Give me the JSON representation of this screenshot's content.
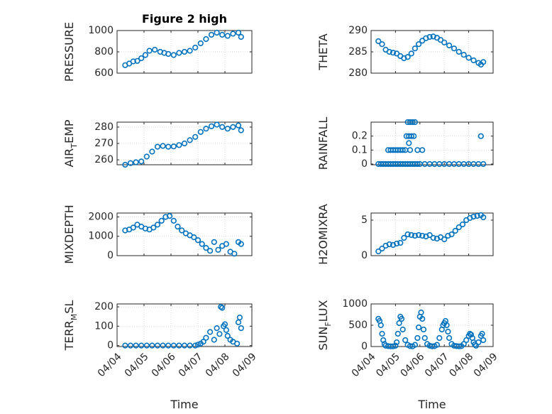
{
  "colors": {
    "marker": "#0072BD",
    "axis": "#262626",
    "grid": "#d9d9d9",
    "background": "#ffffff"
  },
  "chart_data": [
    {
      "id": "pressure",
      "type": "scatter",
      "title": "Figure 2 high",
      "ylabel": "PRESSURE",
      "xlabel": "",
      "xlim": [
        0,
        5
      ],
      "ylim": [
        600,
        1000
      ],
      "yticks": [
        600,
        800,
        1000
      ],
      "yticklabels": [
        "600",
        "800",
        "1000"
      ],
      "xticks": [
        0,
        1,
        2,
        3,
        4,
        5
      ],
      "show_xticklabels": false,
      "grid": true,
      "x": [
        0.3,
        0.45,
        0.6,
        0.75,
        0.9,
        1.05,
        1.2,
        1.4,
        1.6,
        1.75,
        1.9,
        2.1,
        2.3,
        2.5,
        2.7,
        2.9,
        3.1,
        3.3,
        3.5,
        3.7,
        3.9,
        4.1,
        4.3,
        4.5,
        4.6
      ],
      "y": [
        675,
        690,
        710,
        715,
        740,
        770,
        810,
        820,
        800,
        790,
        780,
        770,
        790,
        800,
        810,
        840,
        880,
        920,
        960,
        980,
        960,
        950,
        970,
        980,
        940
      ]
    },
    {
      "id": "theta",
      "type": "scatter",
      "ylabel": "THETA",
      "xlabel": "",
      "xlim": [
        0,
        5
      ],
      "ylim": [
        280,
        290
      ],
      "yticks": [
        280,
        285,
        290
      ],
      "yticklabels": [
        "280",
        "285",
        "290"
      ],
      "xticks": [
        0,
        1,
        2,
        3,
        4,
        5
      ],
      "show_xticklabels": false,
      "grid": true,
      "x": [
        0.3,
        0.45,
        0.6,
        0.75,
        0.9,
        1.05,
        1.2,
        1.35,
        1.5,
        1.65,
        1.8,
        1.95,
        2.1,
        2.25,
        2.4,
        2.55,
        2.7,
        2.85,
        3.0,
        3.2,
        3.4,
        3.6,
        3.8,
        4.0,
        4.2,
        4.4,
        4.5,
        4.6
      ],
      "y": [
        287.5,
        286.8,
        285.5,
        285.0,
        284.8,
        284.6,
        284.0,
        283.5,
        283.8,
        284.6,
        285.8,
        286.8,
        287.6,
        288.2,
        288.5,
        288.6,
        288.3,
        287.8,
        287.2,
        286.5,
        285.8,
        285.0,
        284.3,
        283.6,
        283.0,
        282.4,
        282.0,
        282.6
      ]
    },
    {
      "id": "air_temp",
      "type": "scatter",
      "ylabel": "AIR_TEMP",
      "ylabel_parts": [
        "AIR",
        "T",
        "EMP"
      ],
      "xlabel": "",
      "xlim": [
        0,
        5
      ],
      "ylim": [
        257,
        283
      ],
      "yticks": [
        260,
        270,
        280
      ],
      "yticklabels": [
        "260",
        "270",
        "280"
      ],
      "xticks": [
        0,
        1,
        2,
        3,
        4,
        5
      ],
      "show_xticklabels": false,
      "grid": true,
      "x": [
        0.3,
        0.5,
        0.7,
        0.9,
        1.1,
        1.3,
        1.5,
        1.7,
        1.9,
        2.1,
        2.3,
        2.5,
        2.7,
        2.9,
        3.1,
        3.3,
        3.5,
        3.7,
        3.9,
        4.1,
        4.3,
        4.5,
        4.6
      ],
      "y": [
        257,
        258,
        258.5,
        259,
        262,
        265,
        268,
        268.5,
        268,
        268.2,
        269,
        270,
        272,
        274,
        277,
        279,
        280.5,
        281.5,
        280,
        279,
        280,
        281,
        278
      ]
    },
    {
      "id": "rainfall",
      "type": "scatter",
      "ylabel": "RAINFALL",
      "xlabel": "",
      "xlim": [
        0,
        5
      ],
      "ylim": [
        -0.005,
        0.3
      ],
      "yticks": [
        0,
        0.1,
        0.2
      ],
      "yticklabels": [
        "0",
        "0.1",
        "0.2"
      ],
      "xticks": [
        0,
        1,
        2,
        3,
        4,
        5
      ],
      "show_xticklabels": false,
      "grid": true,
      "x": [
        0.3,
        0.4,
        0.5,
        0.6,
        0.7,
        0.8,
        0.9,
        1.0,
        1.1,
        1.2,
        1.3,
        1.4,
        1.5,
        1.6,
        1.7,
        1.8,
        1.9,
        2.0,
        2.2,
        2.4,
        2.6,
        2.8,
        3.0,
        3.2,
        3.4,
        3.6,
        3.8,
        4.0,
        4.2,
        4.4,
        4.6,
        0.7,
        0.8,
        0.9,
        1.0,
        1.1,
        1.2,
        1.3,
        1.4,
        1.6,
        1.9,
        2.1,
        1.45,
        1.55,
        1.65,
        1.75,
        1.5,
        1.6,
        1.7,
        1.8,
        1.55,
        4.5
      ],
      "y": [
        0,
        0,
        0,
        0,
        0,
        0,
        0,
        0,
        0,
        0,
        0,
        0,
        0,
        0,
        0,
        0,
        0,
        0,
        0,
        0,
        0,
        0,
        0,
        0,
        0,
        0,
        0,
        0,
        0,
        0,
        0,
        0.1,
        0.1,
        0.1,
        0.1,
        0.1,
        0.1,
        0.1,
        0.1,
        0.1,
        0.1,
        0.1,
        0.2,
        0.2,
        0.2,
        0.2,
        0.3,
        0.3,
        0.3,
        0.3,
        0.15,
        0.2
      ]
    },
    {
      "id": "mixdepth",
      "type": "scatter",
      "ylabel": "MIXDEPTH",
      "xlabel": "",
      "xlim": [
        0,
        5
      ],
      "ylim": [
        0,
        2200
      ],
      "yticks": [
        0,
        1000,
        2000
      ],
      "yticklabels": [
        "0",
        "1000",
        "2000"
      ],
      "xticks": [
        0,
        1,
        2,
        3,
        4,
        5
      ],
      "show_xticklabels": false,
      "grid": true,
      "x": [
        0.3,
        0.45,
        0.6,
        0.75,
        0.9,
        1.05,
        1.2,
        1.35,
        1.5,
        1.65,
        1.8,
        1.95,
        2.1,
        2.25,
        2.4,
        2.55,
        2.7,
        2.85,
        3.0,
        3.15,
        3.3,
        3.45,
        3.6,
        3.75,
        3.9,
        4.05,
        4.2,
        4.35,
        4.5,
        4.6
      ],
      "y": [
        1300,
        1350,
        1450,
        1600,
        1500,
        1400,
        1350,
        1450,
        1600,
        1800,
        2000,
        2050,
        1800,
        1500,
        1300,
        1150,
        1050,
        950,
        800,
        600,
        400,
        250,
        700,
        300,
        500,
        600,
        200,
        100,
        700,
        600
      ]
    },
    {
      "id": "h2omixra",
      "type": "scatter",
      "ylabel": "H2OMIXRA",
      "xlabel": "",
      "xlim": [
        0,
        5
      ],
      "ylim": [
        0,
        6
      ],
      "yticks": [
        0,
        5
      ],
      "yticklabels": [
        "0",
        "5"
      ],
      "xticks": [
        0,
        1,
        2,
        3,
        4,
        5
      ],
      "show_xticklabels": false,
      "grid": true,
      "x": [
        0.3,
        0.45,
        0.6,
        0.75,
        0.9,
        1.05,
        1.2,
        1.35,
        1.5,
        1.65,
        1.8,
        1.95,
        2.1,
        2.25,
        2.4,
        2.55,
        2.7,
        2.85,
        3.0,
        3.15,
        3.3,
        3.45,
        3.6,
        3.75,
        3.9,
        4.05,
        4.2,
        4.35,
        4.5,
        4.6
      ],
      "y": [
        0.6,
        1.0,
        1.4,
        1.6,
        1.5,
        1.7,
        1.8,
        2.5,
        3.0,
        2.9,
        2.8,
        2.9,
        2.8,
        2.7,
        2.9,
        2.5,
        2.4,
        2.6,
        2.3,
        2.8,
        3.0,
        3.5,
        4.0,
        4.4,
        5.0,
        5.3,
        5.5,
        5.6,
        5.7,
        5.4
      ]
    },
    {
      "id": "terr_msl",
      "type": "scatter",
      "ylabel": "TERR_MSL",
      "ylabel_parts": [
        "TERR",
        "M",
        "SL"
      ],
      "xlabel": "Time",
      "xlim": [
        0,
        5
      ],
      "ylim": [
        -5,
        215
      ],
      "yticks": [
        0,
        100,
        200
      ],
      "yticklabels": [
        "0",
        "100",
        "200"
      ],
      "xticks": [
        0,
        1,
        2,
        3,
        4,
        5
      ],
      "xticklabels": [
        "04/04",
        "04/05",
        "04/06",
        "04/07",
        "04/08",
        "04/09"
      ],
      "show_xticklabels": true,
      "grid": true,
      "x": [
        0.3,
        0.5,
        0.7,
        0.9,
        1.1,
        1.3,
        1.5,
        1.7,
        1.9,
        2.1,
        2.3,
        2.5,
        2.7,
        2.9,
        3.0,
        3.1,
        3.2,
        3.3,
        3.45,
        3.6,
        3.7,
        3.8,
        3.85,
        3.9,
        3.95,
        4.0,
        4.05,
        4.1,
        4.2,
        4.3,
        4.45,
        4.5,
        4.55,
        4.6
      ],
      "y": [
        0,
        0,
        0,
        0,
        0,
        0,
        0,
        0,
        0,
        0,
        0,
        0,
        0,
        0,
        5,
        10,
        20,
        40,
        70,
        30,
        90,
        60,
        200,
        195,
        100,
        110,
        80,
        50,
        30,
        20,
        10,
        120,
        145,
        90
      ]
    },
    {
      "id": "sun_flux",
      "type": "scatter",
      "ylabel": "SUN_FLUX",
      "ylabel_parts": [
        "SUN",
        "F",
        "LUX"
      ],
      "xlabel": "Time",
      "xlim": [
        0,
        5
      ],
      "ylim": [
        0,
        1000
      ],
      "yticks": [
        0,
        500,
        1000
      ],
      "yticklabels": [
        "0",
        "500",
        "1000"
      ],
      "xticks": [
        0,
        1,
        2,
        3,
        4,
        5
      ],
      "xticklabels": [
        "04/04",
        "04/05",
        "04/06",
        "04/07",
        "04/08",
        "04/09"
      ],
      "show_xticklabels": true,
      "grid": true,
      "x": [
        0.3,
        0.35,
        0.4,
        0.45,
        0.5,
        0.55,
        0.6,
        0.7,
        0.8,
        0.9,
        1.0,
        1.05,
        1.1,
        1.15,
        1.2,
        1.25,
        1.3,
        1.4,
        1.5,
        1.6,
        1.7,
        1.8,
        1.9,
        1.95,
        2.0,
        2.05,
        2.1,
        2.15,
        2.2,
        2.3,
        2.4,
        2.5,
        2.6,
        2.7,
        2.8,
        2.9,
        2.95,
        3.0,
        3.05,
        3.1,
        3.15,
        3.2,
        3.3,
        3.4,
        3.5,
        3.6,
        3.7,
        3.8,
        3.9,
        4.0,
        4.05,
        4.1,
        4.15,
        4.2,
        4.25,
        4.3,
        4.4,
        4.5,
        4.55,
        4.6
      ],
      "y": [
        650,
        600,
        500,
        300,
        150,
        60,
        20,
        10,
        5,
        5,
        20,
        100,
        300,
        550,
        700,
        650,
        400,
        150,
        40,
        10,
        5,
        40,
        200,
        450,
        700,
        800,
        650,
        400,
        200,
        60,
        20,
        5,
        10,
        40,
        200,
        400,
        500,
        550,
        600,
        500,
        350,
        200,
        60,
        20,
        10,
        5,
        10,
        60,
        150,
        250,
        300,
        280,
        200,
        100,
        50,
        20,
        100,
        250,
        300,
        150
      ]
    }
  ]
}
